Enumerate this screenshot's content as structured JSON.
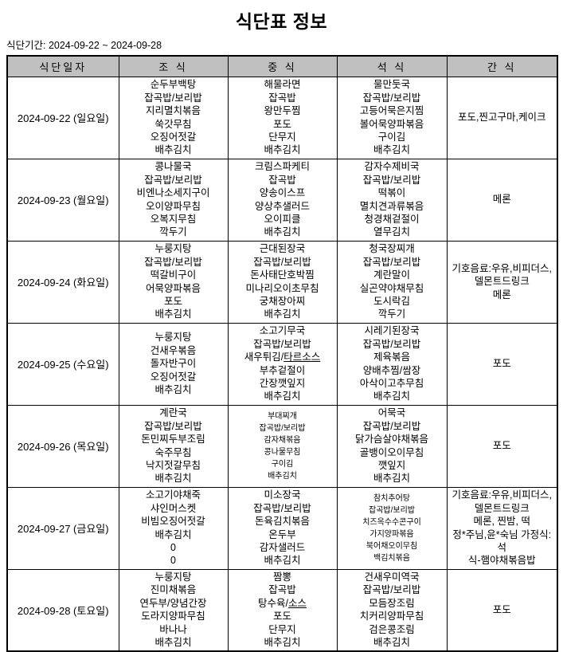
{
  "title": "식단표 정보",
  "period_label": "식단기간: 2024-09-22 ~ 2024-09-28",
  "colors": {
    "header_bg": "#c0c0c0",
    "border": "#000000",
    "text": "#000000"
  },
  "table": {
    "headers": [
      "식단일자",
      "조 식",
      "중 식",
      "석 식",
      "간 식"
    ],
    "rows": [
      {
        "date": "2024-09-22 (일요일)",
        "cells": [
          {
            "items": [
              "순두부백탕",
              "잡곡밥/보리밥",
              "지리멸치볶음",
              "쑥갓무침",
              "오징어젓갈",
              "배추김치"
            ]
          },
          {
            "items": [
              "해물라면",
              "잡곡밥",
              "왕만두찜",
              "포도",
              "단무지",
              "배추김치"
            ]
          },
          {
            "items": [
              "물만둣국",
              "잡곡밥/보리밥",
              "고등어묵은지찜",
              "볼어묵양파볶음",
              "구이김",
              "배추김치"
            ]
          },
          {
            "items": [
              "포도,찐고구마,케이크"
            ]
          }
        ]
      },
      {
        "date": "2024-09-23 (월요일)",
        "cells": [
          {
            "items": [
              "콩나물국",
              "잡곡밥/보리밥",
              "비엔나소세지구이",
              "오이양파무침",
              "오복지무침",
              "깍두기"
            ]
          },
          {
            "items": [
              "크림스파케티",
              "잡곡밥",
              "양송이스프",
              "양상추샐러드",
              "오이피클",
              "배추김치"
            ]
          },
          {
            "items": [
              "감자수제비국",
              "잡곡밥/보리밥",
              "떡볶이",
              "멸치견과류볶음",
              "청경채겉절이",
              "열무김치"
            ]
          },
          {
            "items": [
              "메론"
            ]
          }
        ]
      },
      {
        "date": "2024-09-24 (화요일)",
        "cells": [
          {
            "items": [
              "누룽지탕",
              "잡곡밥/보리밥",
              "떡갈비구이",
              "어묵양파볶음",
              "포도",
              "배추김치"
            ]
          },
          {
            "items": [
              "근대된장국",
              "잡곡밥/보리밥",
              "돈사태단호박찜",
              "미나리오이초무침",
              "궁채장아찌",
              "배추김치"
            ]
          },
          {
            "items": [
              "청국장찌개",
              "잡곡밥/보리밥",
              "계란말이",
              "실곤약야채무침",
              "도시락김",
              "깍두기"
            ]
          },
          {
            "items": [
              "기호음료:우유,비피더스,",
              "델몬트드링크",
              "메론"
            ]
          }
        ]
      },
      {
        "date": "2024-09-25 (수요일)",
        "cells": [
          {
            "items": [
              "누룽지탕",
              "건새우볶음",
              "돌자반구이",
              "오징어젓갈",
              "배추김치"
            ]
          },
          {
            "items": [
              "소고기무국",
              "잡곡밥/보리밥",
              {
                "pre": "새우튀김/",
                "u": "타르소스"
              },
              "부추겉절이",
              "간장깻잎지",
              "배추김치"
            ]
          },
          {
            "items": [
              "시레기된장국",
              "잡곡밥/보리밥",
              "제육볶음",
              "양배추찜/쌈장",
              "아삭이고추무침",
              "배추김치"
            ]
          },
          {
            "items": [
              "포도"
            ]
          }
        ]
      },
      {
        "date": "2024-09-26 (목요일)",
        "cells": [
          {
            "items": [
              "계란국",
              "잡곡밥/보리밥",
              "돈민찌두부조림",
              "숙주무침",
              "낙지젓갈무침",
              "배추김치"
            ]
          },
          {
            "small": true,
            "items": [
              "부대찌개",
              "잡곡밥/보리밥",
              "감자채볶음",
              "콩나물무침",
              "구이김",
              "배추김치"
            ]
          },
          {
            "items": [
              "어묵국",
              "잡곡밥/보리밥",
              "닭가슴살야채볶음",
              "골뱅이오이무침",
              "깻잎지",
              "배추김치"
            ]
          },
          {
            "items": [
              "포도"
            ]
          }
        ]
      },
      {
        "date": "2024-09-27 (금요일)",
        "cells": [
          {
            "items": [
              "소고기야채죽",
              "샤인머스켓",
              "비빔오징어젓갈",
              "배추김치",
              "0",
              "0"
            ]
          },
          {
            "items": [
              "미소장국",
              "잡곡밥/보리밥",
              "돈육김치볶음",
              "온두부",
              "감자샐러드",
              "배추김치"
            ]
          },
          {
            "small": true,
            "items": [
              "참치추어탕",
              "잡곡밥/보리밥",
              "치즈옥수수콘구이",
              "가지양파볶음",
              "북어채오이무침",
              "백김치볶음"
            ]
          },
          {
            "items": [
              "기호음료:우유,비피더스,",
              "델몬트드링크",
              "메론, 찐밤, 떡",
              "정*주님,윤*숙님 가정식:석",
              "식-햄야채볶음밥"
            ]
          }
        ]
      },
      {
        "date": "2024-09-28 (토요일)",
        "cells": [
          {
            "items": [
              "누룽지탕",
              "진미채볶음",
              "연두부/양념간장",
              "도라지양파무침",
              "바나나",
              "배추김치"
            ]
          },
          {
            "items": [
              "짬뽕",
              "잡곡밥",
              {
                "pre": "탕수육/",
                "u": "소스"
              },
              "포도",
              "단무지",
              "배추김치"
            ]
          },
          {
            "items": [
              "건새우미역국",
              "잡곡밥/보리밥",
              "모듬장조림",
              "치커리양파무침",
              "검은콩조림",
              "배추김치"
            ]
          },
          {
            "items": [
              "포도"
            ]
          }
        ]
      }
    ]
  }
}
